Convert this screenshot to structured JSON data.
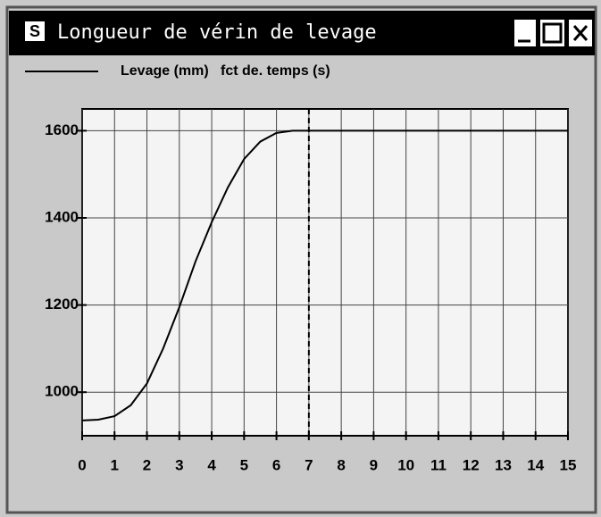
{
  "window": {
    "title": "Longueur de vérin de levage"
  },
  "chart_data": {
    "type": "line",
    "series": [
      {
        "name": "Levage (mm)   fct de. temps (s)",
        "color": "#000000",
        "values": [
          935,
          937,
          945,
          970,
          1020,
          1100,
          1195,
          1300,
          1390,
          1470,
          1535,
          1575,
          1595,
          1600,
          1600,
          1600
        ]
      }
    ],
    "x": [
      0,
      0.5,
      1,
      1.5,
      2,
      2.5,
      3,
      3.5,
      4,
      4.5,
      5,
      5.5,
      6,
      6.5,
      7,
      15
    ],
    "xlim": [
      0,
      15
    ],
    "xticks": [
      0,
      1,
      2,
      3,
      4,
      5,
      6,
      7,
      8,
      9,
      10,
      11,
      12,
      13,
      14,
      15
    ],
    "ylim": [
      900,
      1650
    ],
    "yticks": [
      1000,
      1200,
      1400,
      1600
    ],
    "marker_x": 7,
    "grid": true
  }
}
